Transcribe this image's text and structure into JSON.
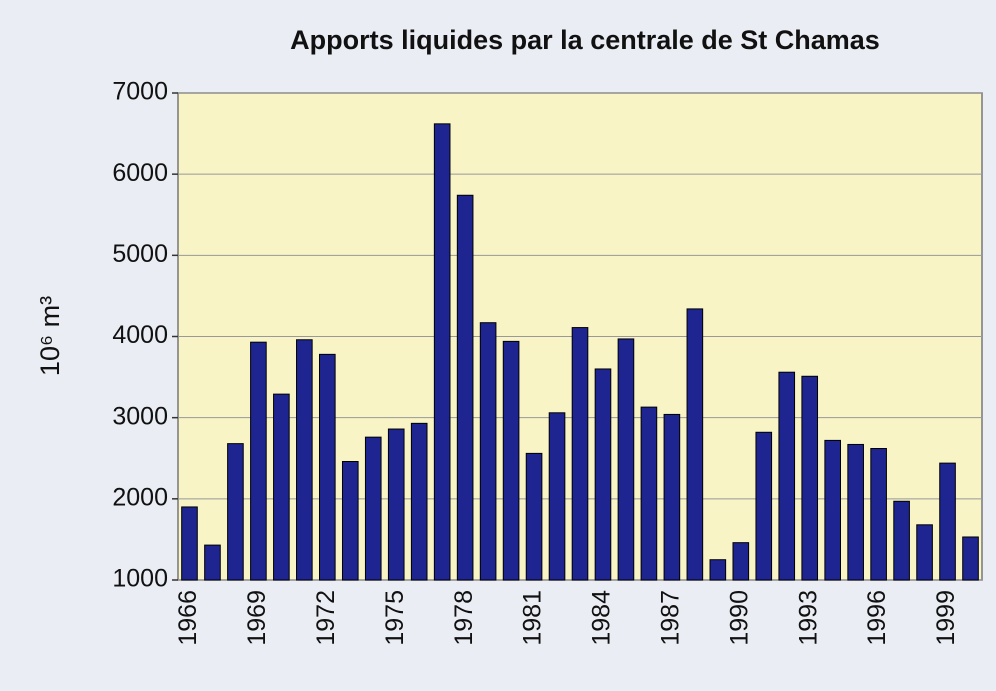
{
  "chart_data": {
    "type": "bar",
    "title": "Apports liquides par la centrale de St Chamas",
    "ylabel": "10⁶ m³",
    "categories": [
      "1966",
      null,
      null,
      "1969",
      null,
      null,
      "1972",
      null,
      null,
      "1975",
      null,
      null,
      "1978",
      null,
      null,
      "1981",
      null,
      null,
      "1984",
      null,
      null,
      "1987",
      null,
      null,
      "1990",
      null,
      null,
      "1993",
      null,
      null,
      "1996",
      null,
      null,
      "1999",
      null
    ],
    "values": [
      1900,
      1430,
      2680,
      3930,
      3290,
      3960,
      3780,
      2460,
      2760,
      2860,
      2930,
      6620,
      5740,
      4170,
      3940,
      2560,
      3060,
      4110,
      3600,
      3970,
      3130,
      3040,
      4340,
      1250,
      1460,
      2820,
      3560,
      3510,
      2720,
      2670,
      2620,
      1970,
      1680,
      2440,
      1530
    ],
    "color": "#1e2490",
    "plot_background": "#f8f4c6",
    "ylim": [
      1000,
      7000
    ],
    "yticks": [
      1000,
      2000,
      3000,
      4000,
      5000,
      6000,
      7000
    ],
    "grid": true
  }
}
